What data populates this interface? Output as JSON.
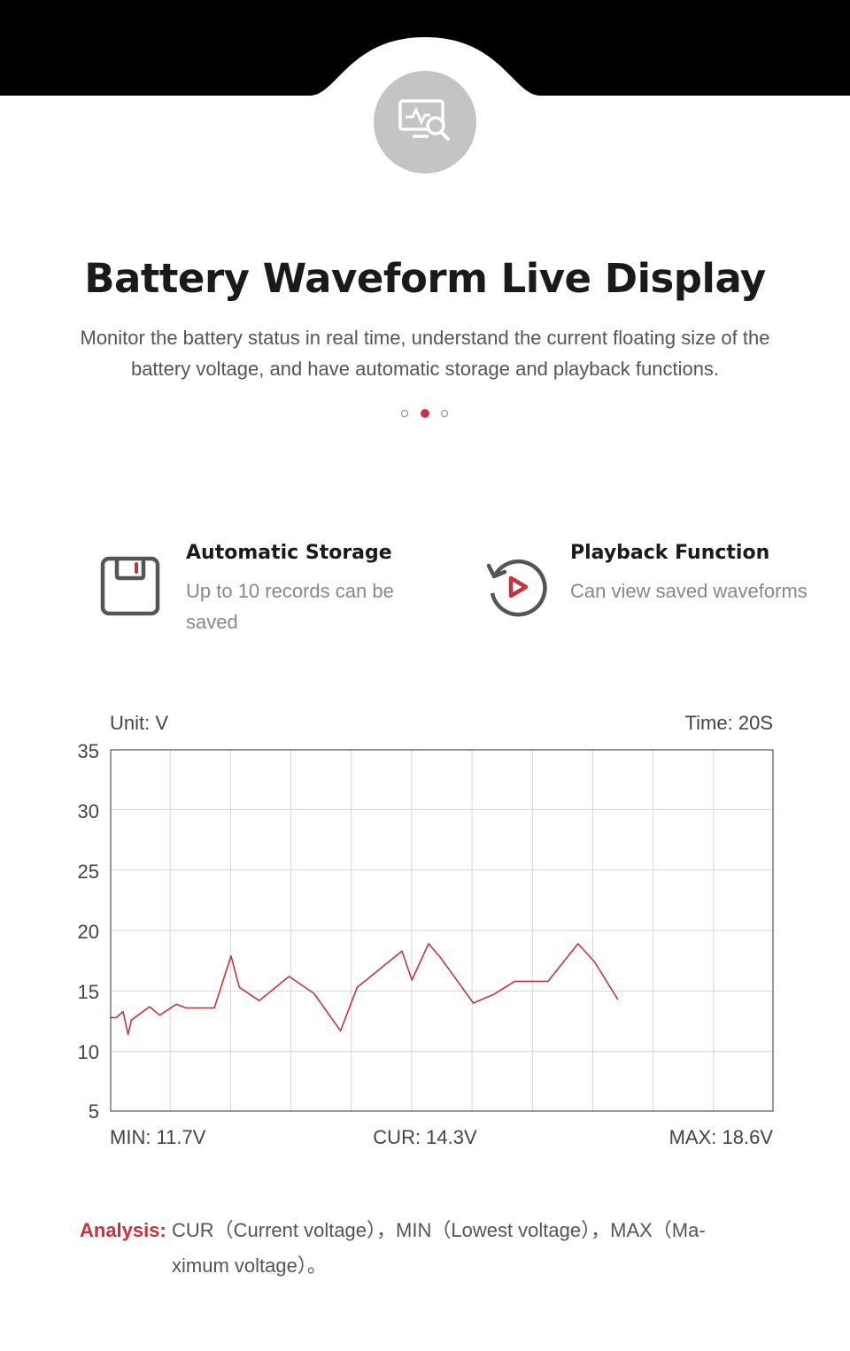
{
  "header": {
    "title": "Battery Waveform Live Display",
    "subtitle": "Monitor the battery status in real time, understand the current floating size of the battery voltage, and have automatic storage and playback functions.",
    "icon": "monitor-waveform-search-icon",
    "dots": {
      "count": 3,
      "active_index": 1
    }
  },
  "features": [
    {
      "icon": "save-disk-icon",
      "title": "Automatic Storage",
      "description": "Up to 10 records can be saved"
    },
    {
      "icon": "replay-icon",
      "title": "Playback Function",
      "description": "Can view saved waveforms"
    }
  ],
  "chart_labels": {
    "unit": "Unit: V",
    "time": "Time: 20S",
    "min": "MIN: 11.7V",
    "cur": "CUR: 14.3V",
    "max": "MAX: 18.6V"
  },
  "chart_data": {
    "type": "line",
    "ylim": [
      5,
      35
    ],
    "xlim": [
      0,
      20
    ],
    "yticks": [
      "35",
      "30",
      "25",
      "20",
      "15",
      "10",
      "5"
    ],
    "grid": true,
    "x": [
      0,
      0.2,
      0.4,
      0.55,
      0.65,
      0.9,
      1.2,
      1.5,
      2.0,
      2.3,
      3.15,
      3.65,
      3.9,
      4.5,
      5.4,
      6.15,
      6.95,
      7.45,
      8.8,
      9.1,
      9.6,
      9.95,
      10.95,
      11.55,
      12.2,
      13.2,
      14.1,
      14.6,
      15.3
    ],
    "values": [
      12.8,
      12.8,
      13.3,
      11.4,
      12.6,
      13.1,
      13.7,
      13.0,
      13.9,
      13.6,
      13.6,
      17.9,
      15.3,
      14.2,
      16.2,
      14.8,
      11.7,
      15.3,
      18.3,
      15.9,
      18.9,
      17.8,
      14.0,
      14.7,
      15.8,
      15.8,
      18.9,
      17.4,
      14.3
    ],
    "line_color": "#c8323d",
    "grid_color": "#d6d6d6"
  },
  "analysis": {
    "label": "Analysis:",
    "line1": "CUR（Current voltage），MIN（Lowest voltage），MAX（Ma-",
    "line2": "ximum voltage）。"
  },
  "colors": {
    "accent": "#c8323d",
    "band": "#000000",
    "icon_circle": "#c4c4c4"
  }
}
